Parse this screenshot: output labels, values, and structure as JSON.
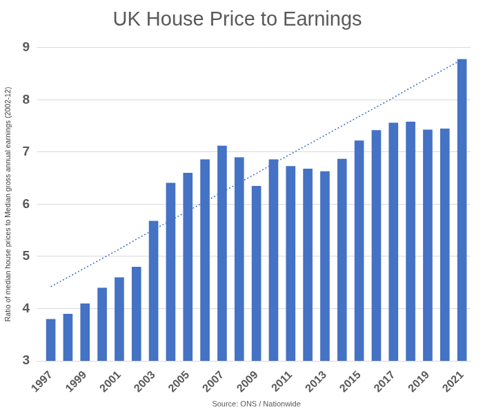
{
  "chart_data": {
    "type": "bar",
    "title": "UK House Price to Earnings",
    "y_label": "Ratio of median house prices to Median gross annual earnings (2002-12)",
    "source": "Source: ONS / Nationwide",
    "categories": [
      "1997",
      null,
      "1999",
      null,
      "2001",
      null,
      "2003",
      null,
      "2005",
      null,
      "2007",
      null,
      "2009",
      null,
      "2011",
      null,
      "2013",
      null,
      "2015",
      null,
      "2017",
      null,
      "2019",
      null,
      "2021"
    ],
    "series": [
      {
        "type": "bar",
        "color": "#4472c4",
        "values": [
          3.8,
          3.9,
          4.1,
          4.4,
          4.6,
          4.8,
          5.68,
          6.41,
          6.6,
          6.86,
          7.12,
          6.9,
          6.35,
          6.86,
          6.73,
          6.68,
          6.63,
          6.87,
          7.22,
          7.42,
          7.56,
          7.58,
          7.43,
          7.45,
          8.78
        ]
      },
      {
        "type": "line",
        "color": "#4472c4",
        "line_style": "dotted",
        "values": [
          4.42,
          4.6,
          4.78,
          4.96,
          5.14,
          5.33,
          5.51,
          5.69,
          5.87,
          6.05,
          6.23,
          6.41,
          6.59,
          6.78,
          6.96,
          7.14,
          7.32,
          7.5,
          7.68,
          7.86,
          8.04,
          8.23,
          8.41,
          8.59,
          8.77
        ]
      }
    ],
    "ylim": [
      3,
      9
    ],
    "yticks": [
      3,
      4,
      5,
      6,
      7,
      8,
      9
    ],
    "grid": true
  }
}
